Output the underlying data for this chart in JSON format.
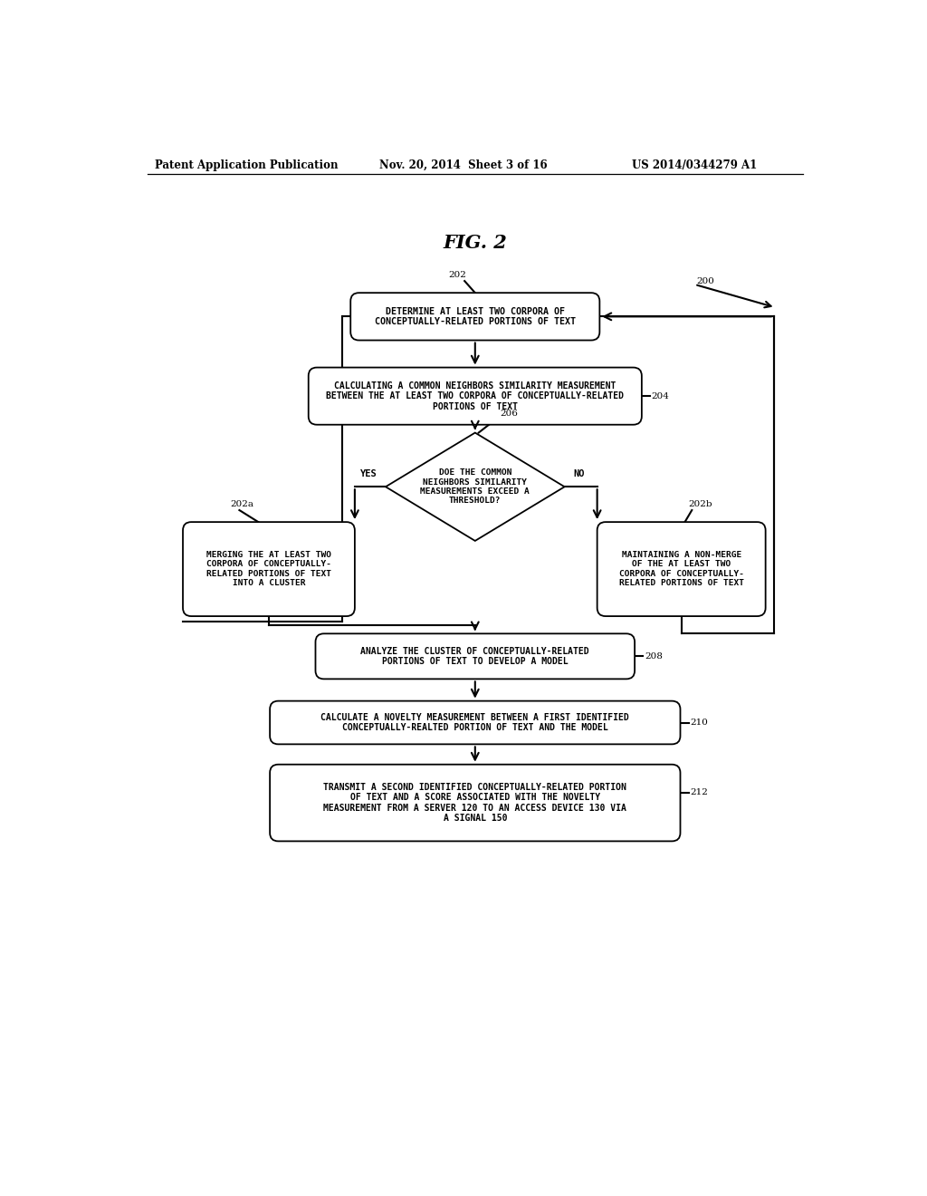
{
  "title": "FIG. 2",
  "header_left": "Patent Application Publication",
  "header_mid": "Nov. 20, 2014  Sheet 3 of 16",
  "header_right": "US 2014/0344279 A1",
  "bg_color": "#ffffff",
  "label_200": "200",
  "label_202": "202",
  "label_202a": "202a",
  "label_202b": "202b",
  "label_204": "204",
  "label_206": "206",
  "label_208": "208",
  "label_210": "210",
  "label_212": "212",
  "box202_text": "DETERMINE AT LEAST TWO CORPORA OF\nCONCEPTUALLY-RELATED PORTIONS OF TEXT",
  "box204_text": "CALCULATING A COMMON NEIGHBORS SIMILARITY MEASUREMENT\nBETWEEN THE AT LEAST TWO CORPORA OF CONCEPTUALLY-RELATED\nPORTIONS OF TEXT",
  "diamond206_text": "DOE THE COMMON\nNEIGHBORS SIMILARITY\nMEASUREMENTS EXCEED A\nTHRESHOLD?",
  "box202a_text": "MERGING THE AT LEAST TWO\nCORPORA OF CONCEPTUALLY-\nRELATED PORTIONS OF TEXT\nINTO A CLUSTER",
  "box202b_text": "MAINTAINING A NON-MERGE\nOF THE AT LEAST TWO\nCORPORA OF CONCEPTUALLY-\nRELATED PORTIONS OF TEXT",
  "box208_text": "ANALYZE THE CLUSTER OF CONCEPTUALLY-RELATED\nPORTIONS OF TEXT TO DEVELOP A MODEL",
  "box210_text": "CALCULATE A NOVELTY MEASUREMENT BETWEEN A FIRST IDENTIFIED\nCONCEPTUALLY-REALTED PORTION OF TEXT AND THE MODEL",
  "box212_text": "TRANSMIT A SECOND IDENTIFIED CONCEPTUALLY-RELATED PORTION\nOF TEXT AND A SCORE ASSOCIATED WITH THE NOVELTY\nMEASUREMENT FROM A SERVER 120 TO AN ACCESS DEVICE 130 VIA\nA SIGNAL 150",
  "yes_label": "YES",
  "no_label": "NO"
}
